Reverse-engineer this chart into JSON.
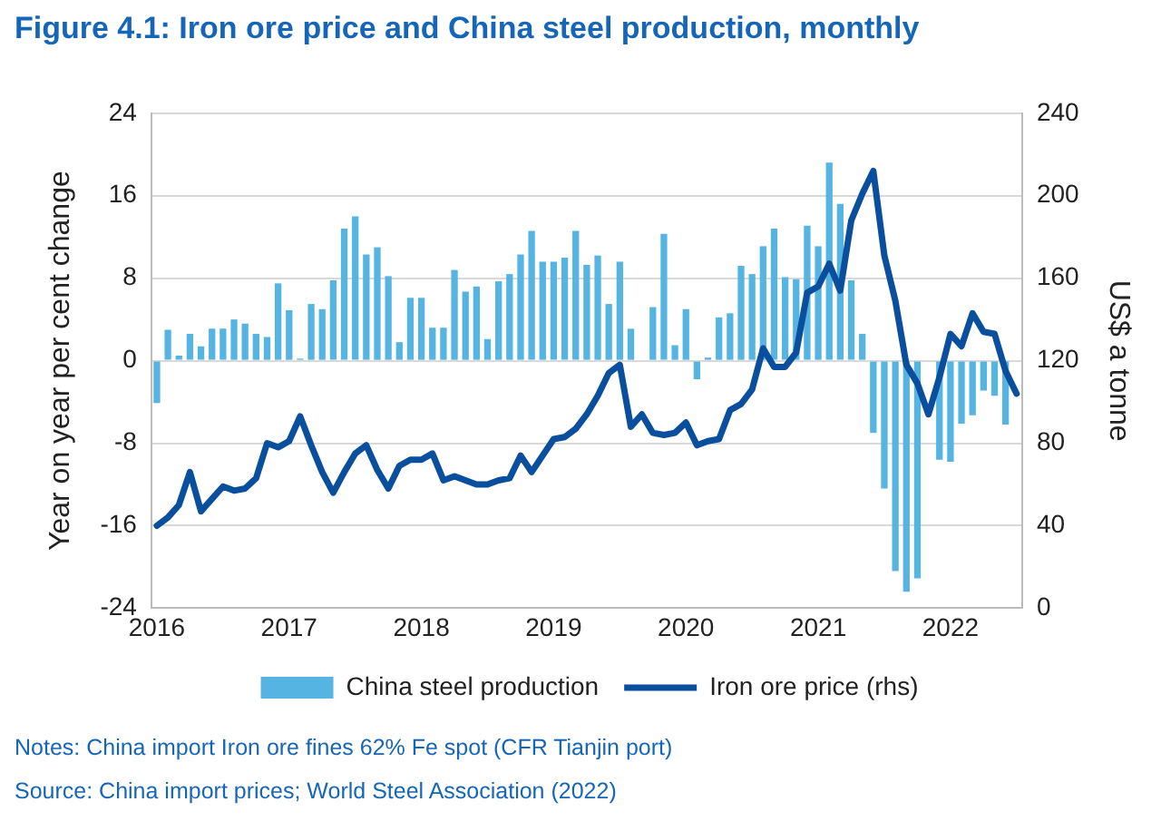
{
  "chart_data": {
    "type": "bar",
    "title": "Figure 4.1: Iron ore price and China steel production, monthly",
    "categories": [
      "2016",
      null,
      null,
      null,
      null,
      null,
      null,
      null,
      null,
      null,
      null,
      null,
      "2017",
      null,
      null,
      null,
      null,
      null,
      null,
      null,
      null,
      null,
      null,
      null,
      "2018",
      null,
      null,
      null,
      null,
      null,
      null,
      null,
      null,
      null,
      null,
      null,
      "2019",
      null,
      null,
      null,
      null,
      null,
      null,
      null,
      null,
      null,
      null,
      null,
      "2020",
      null,
      null,
      null,
      null,
      null,
      null,
      null,
      null,
      null,
      null,
      null,
      "2021",
      null,
      null,
      null,
      null,
      null,
      null,
      null,
      null,
      null,
      null,
      null,
      "2022",
      null,
      null,
      null,
      null,
      null,
      null
    ],
    "series": [
      {
        "name": "China steel production",
        "color": "#55b4e2",
        "values": [
          -4.1,
          3.0,
          0.5,
          2.6,
          1.4,
          3.1,
          3.1,
          4.0,
          3.6,
          2.6,
          2.3,
          7.5,
          4.9,
          0.2,
          5.5,
          5.0,
          7.8,
          12.8,
          14.0,
          10.3,
          11.0,
          8.2,
          1.8,
          6.1,
          6.1,
          3.2,
          3.2,
          8.8,
          6.7,
          7.2,
          2.1,
          7.7,
          8.4,
          10.3,
          12.6,
          9.6,
          9.6,
          10.0,
          12.6,
          9.3,
          10.2,
          5.5,
          9.6,
          3.1,
          null,
          5.2,
          12.3,
          1.5,
          5.0,
          -1.8,
          0.3,
          4.2,
          4.6,
          9.2,
          8.4,
          11.1,
          12.8,
          8.1,
          7.9,
          13.1,
          11.1,
          19.2,
          15.2,
          7.8,
          2.6,
          -7.0,
          -12.4,
          -20.4,
          -22.4,
          -21.1,
          null,
          -9.6,
          -9.8,
          -6.1,
          -5.3,
          -2.9,
          -3.4,
          -6.2,
          null
        ]
      },
      {
        "name": "Iron ore price (rhs)",
        "type": "line",
        "axis": "y2",
        "color": "#0a4f9e",
        "values": [
          40,
          44,
          50,
          66,
          47,
          53,
          59,
          57,
          58,
          63,
          80,
          78,
          81,
          93,
          79,
          66,
          56,
          66,
          75,
          79,
          67,
          58,
          69,
          72,
          72,
          75,
          62,
          64,
          62,
          60,
          60,
          62,
          63,
          74,
          66,
          74,
          82,
          83,
          87,
          94,
          103,
          114,
          118,
          88,
          94,
          85,
          84,
          85,
          90,
          79,
          81,
          82,
          96,
          99,
          106,
          126,
          117,
          117,
          124,
          153,
          156,
          167,
          154,
          188,
          201,
          212,
          171,
          149,
          118,
          109,
          94,
          112,
          133,
          127,
          143,
          134,
          133,
          115,
          104
        ]
      }
    ],
    "ylabel": "Year on year per cent change",
    "y2label": "US$ a tonne",
    "ylim": [
      -24,
      24
    ],
    "yticks": [
      -24,
      -16,
      -8,
      0,
      8,
      16,
      24
    ],
    "y2lim": [
      0,
      240
    ],
    "y2ticks": [
      0,
      40,
      80,
      120,
      160,
      200,
      240
    ],
    "grid": "y",
    "legend": "bottom",
    "marker": "none",
    "line_style": "solid",
    "annotations": [
      "Notes: China import Iron ore fines 62% Fe spot (CFR Tianjin port)",
      "Source: China import prices; World Steel Association (2022)"
    ]
  }
}
